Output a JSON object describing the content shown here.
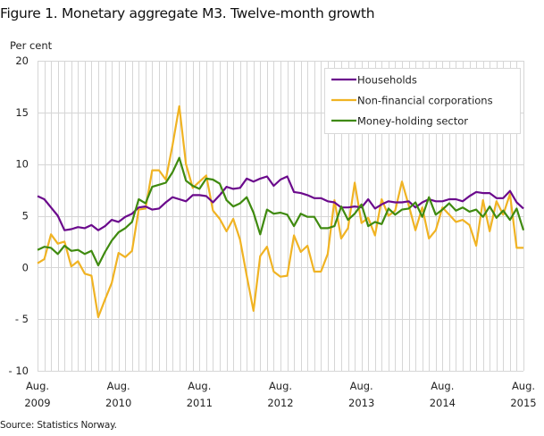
{
  "title": "Figure 1. Monetary aggregate M3. Twelve-month growth",
  "y_unit": "Per cent",
  "source": "Source: Statistics Norway.",
  "colors": {
    "households": "#6b0a8c",
    "non_financial": "#f0b323",
    "money_holding": "#3f8a0f",
    "grid": "#d6d6d6"
  },
  "legend": [
    {
      "label": "Households",
      "color": "#6b0a8c"
    },
    {
      "label": "Non-financial corporations",
      "color": "#f0b323"
    },
    {
      "label": "Money-holding sector",
      "color": "#3f8a0f"
    }
  ],
  "chart_data": {
    "type": "line",
    "title": "Figure 1. Monetary aggregate M3. Twelve-month growth",
    "xlabel": "",
    "ylabel": "Per cent",
    "ylim": [
      -10,
      20
    ],
    "yticks": [
      20,
      15,
      10,
      5,
      0,
      -5,
      -10
    ],
    "ytick_labels": [
      "20",
      "15",
      "10",
      "5",
      "0",
      "- 5",
      "- 10"
    ],
    "x_tick_labels": [
      {
        "month": "Aug.",
        "year": "2009"
      },
      {
        "month": "Aug.",
        "year": "2010"
      },
      {
        "month": "Aug.",
        "year": "2011"
      },
      {
        "month": "Aug.",
        "year": "2012"
      },
      {
        "month": "Aug.",
        "year": "2013"
      },
      {
        "month": "Aug.",
        "year": "2014"
      },
      {
        "month": "Aug.",
        "year": "2015"
      }
    ],
    "x_range": [
      "Aug. 2009",
      "Aug. 2015"
    ],
    "frequency": "monthly",
    "grid": true,
    "legend_position": "upper right",
    "series": [
      {
        "name": "Households",
        "values": [
          6.9,
          6.6,
          5.8,
          5.0,
          3.6,
          3.7,
          3.9,
          3.8,
          4.1,
          3.6,
          4.0,
          4.6,
          4.4,
          4.9,
          5.2,
          5.8,
          5.9,
          5.6,
          5.7,
          6.3,
          6.8,
          6.6,
          6.4,
          7.0,
          7.0,
          6.9,
          6.3,
          7.0,
          7.8,
          7.6,
          7.7,
          8.6,
          8.3,
          8.6,
          8.8,
          7.9,
          8.5,
          8.8,
          7.3,
          7.2,
          7.0,
          6.7,
          6.7,
          6.4,
          6.3,
          5.8,
          5.8,
          5.9,
          5.8,
          6.6,
          5.7,
          6.1,
          6.4,
          6.3,
          6.3,
          6.4,
          5.8,
          6.3,
          6.6,
          6.4,
          6.4,
          6.6,
          6.6,
          6.4,
          6.9,
          7.3,
          7.2,
          7.2,
          6.7,
          6.7,
          7.4,
          6.3,
          5.7
        ]
      },
      {
        "name": "Non-financial corporations",
        "values": [
          0.4,
          0.8,
          3.2,
          2.3,
          2.5,
          0.1,
          0.6,
          -0.6,
          -0.8,
          -4.8,
          -3.1,
          -1.5,
          1.4,
          1.0,
          1.6,
          5.6,
          5.7,
          9.4,
          9.4,
          8.5,
          11.8,
          15.6,
          10.0,
          7.7,
          8.3,
          8.9,
          5.5,
          4.7,
          3.5,
          4.7,
          2.7,
          -0.8,
          -4.2,
          1.1,
          2.0,
          -0.4,
          -0.9,
          -0.8,
          3.1,
          1.5,
          2.1,
          -0.4,
          -0.4,
          1.3,
          6.5,
          2.8,
          3.8,
          8.2,
          4.3,
          4.8,
          3.1,
          6.6,
          5.0,
          5.5,
          8.3,
          6.0,
          3.6,
          5.8,
          2.8,
          3.6,
          5.8,
          5.1,
          4.4,
          4.6,
          4.1,
          2.1,
          6.5,
          3.5,
          6.4,
          5.1,
          7.1,
          1.9,
          1.9
        ]
      },
      {
        "name": "Money-holding sector",
        "values": [
          1.7,
          2.0,
          1.9,
          1.3,
          2.1,
          1.6,
          1.7,
          1.3,
          1.6,
          0.2,
          1.5,
          2.6,
          3.4,
          3.8,
          4.4,
          6.6,
          6.2,
          7.8,
          8.0,
          8.2,
          9.2,
          10.6,
          8.4,
          7.9,
          7.6,
          8.6,
          8.5,
          8.1,
          6.5,
          5.9,
          6.2,
          6.8,
          5.3,
          3.2,
          5.6,
          5.2,
          5.3,
          5.1,
          4.0,
          5.2,
          4.9,
          4.9,
          3.8,
          3.8,
          4.0,
          5.9,
          4.6,
          5.2,
          6.1,
          4.0,
          4.4,
          4.2,
          5.7,
          5.1,
          5.6,
          5.7,
          6.3,
          4.9,
          6.8,
          5.1,
          5.6,
          6.2,
          5.5,
          5.8,
          5.4,
          5.6,
          4.9,
          5.9,
          4.8,
          5.5,
          4.6,
          5.7,
          3.6
        ]
      }
    ]
  }
}
